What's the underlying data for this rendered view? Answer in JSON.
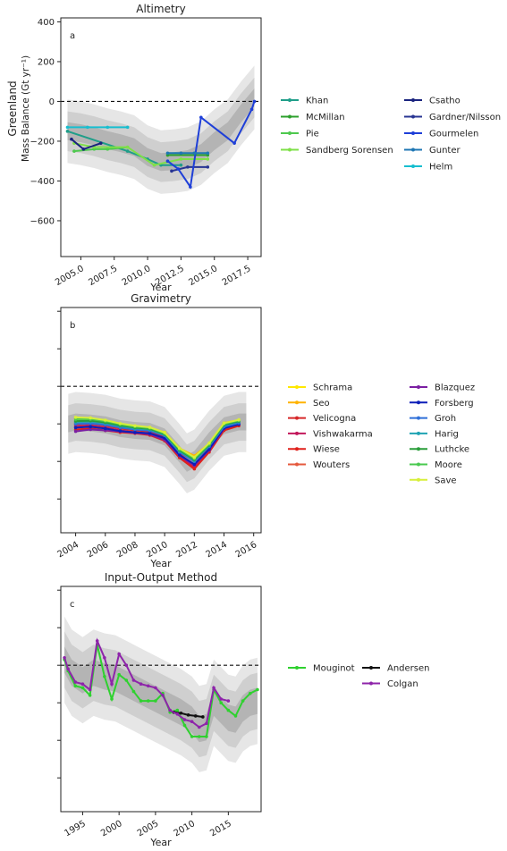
{
  "chart_data": [
    {
      "id": "a",
      "type": "line",
      "title": "Altimetry",
      "panel_label": "a",
      "xlabel": "Year",
      "ylabel_line1": "Greenland",
      "ylabel_line2": "Mass Balance (Gt yr⁻¹)",
      "xlim": [
        2003.5,
        2018.5
      ],
      "ylim": [
        -780,
        420
      ],
      "xticks": [
        2005.0,
        2007.5,
        2010.0,
        2012.5,
        2015.0,
        2017.5
      ],
      "xtick_labels": [
        "2005.0",
        "2007.5",
        "2010.0",
        "2012.5",
        "2015.0",
        "2017.5"
      ],
      "yticks": [
        400,
        200,
        0,
        -200,
        -400,
        -600
      ],
      "ytick_labels": [
        "400",
        "200",
        "0",
        "−200",
        "−400",
        "−600"
      ],
      "zero_line": true,
      "band_x": [
        2004.0,
        2005.0,
        2006.0,
        2007.0,
        2008.0,
        2009.0,
        2010.0,
        2011.0,
        2012.0,
        2013.0,
        2014.0,
        2015.0,
        2016.0,
        2017.0,
        2018.0
      ],
      "band_mean": [
        -150,
        -160,
        -175,
        -195,
        -210,
        -230,
        -280,
        -305,
        -300,
        -290,
        -260,
        -200,
        -150,
        -60,
        20
      ],
      "band_halfwidths": [
        160,
        100,
        45
      ],
      "series": [
        {
          "name": "Khan",
          "color": "#1f9e89",
          "x": [
            2004.0,
            2008.5,
            2010.0,
            2011.0,
            2012.5
          ],
          "y": [
            -150,
            -250,
            -290,
            -320,
            -320
          ]
        },
        {
          "name": "McMillan",
          "color": "#2ca02c",
          "x": [
            2011.5,
            2014.5
          ],
          "y": [
            -270,
            -270
          ]
        },
        {
          "name": "Pie",
          "color": "#4ec94e",
          "x": [
            2004.5,
            2006.0,
            2007.0,
            2008.5
          ],
          "y": [
            -250,
            -240,
            -240,
            -230
          ]
        },
        {
          "name": "Sandberg Sorensen",
          "color": "#7fe048",
          "x": [
            2004.5,
            2006.0,
            2008.5,
            2010.5,
            2012.5,
            2014.5
          ],
          "y": [
            -210,
            -230,
            -230,
            -320,
            -290,
            -290
          ]
        },
        {
          "name": "Csatho",
          "color": "#1a237e",
          "x": [
            2004.3,
            2005.2,
            2006.5
          ],
          "y": [
            -190,
            -240,
            -210
          ]
        },
        {
          "name": "Gardner/Nilsson",
          "color": "#283593",
          "x": [
            2011.8,
            2013.0,
            2014.5
          ],
          "y": [
            -350,
            -330,
            -330
          ]
        },
        {
          "name": "Gourmelen",
          "color": "#1e3fd8",
          "x": [
            2011.5,
            2012.3,
            2013.2,
            2014.0,
            2016.5,
            2017.8,
            2018.0
          ],
          "y": [
            -300,
            -340,
            -430,
            -80,
            -210,
            -40,
            0
          ]
        },
        {
          "name": "Gunter",
          "color": "#1f77b4",
          "x": [
            2011.5,
            2012.5,
            2013.5,
            2014.5
          ],
          "y": [
            -260,
            -260,
            -260,
            -260
          ]
        },
        {
          "name": "Helm",
          "color": "#17becf",
          "x": [
            2004.0,
            2005.5,
            2007.0,
            2008.5
          ],
          "y": [
            -130,
            -130,
            -130,
            -130
          ]
        }
      ]
    },
    {
      "id": "b",
      "type": "line",
      "title": "Gravimetry",
      "panel_label": "b",
      "xlabel": "Year",
      "xlim": [
        2003.0,
        2016.5
      ],
      "ylim": [
        -780,
        420
      ],
      "xticks": [
        2004,
        2006,
        2008,
        2010,
        2012,
        2014,
        2016
      ],
      "xtick_labels": [
        "2004",
        "2006",
        "2008",
        "2010",
        "2012",
        "2014",
        "2016"
      ],
      "yticks": [
        400,
        200,
        0,
        -200,
        -400,
        -600
      ],
      "ytick_labels": [
        "",
        "",
        "",
        "",
        "",
        ""
      ],
      "zero_line": true,
      "band_x": [
        2003.5,
        2004.0,
        2005.0,
        2006.0,
        2007.0,
        2008.0,
        2009.0,
        2010.0,
        2011.0,
        2011.5,
        2012.0,
        2012.5,
        2013.0,
        2014.0,
        2015.0,
        2015.5
      ],
      "band_mean": [
        -200,
        -190,
        -195,
        -205,
        -225,
        -235,
        -240,
        -270,
        -360,
        -410,
        -390,
        -340,
        -290,
        -210,
        -190,
        -190
      ],
      "band_halfwidths": [
        160,
        100,
        45
      ],
      "series": [
        {
          "name": "Schrama",
          "color": "#ffe800",
          "x": [
            2004,
            2005,
            2006,
            2007,
            2008,
            2009,
            2010,
            2011,
            2012,
            2013,
            2014,
            2015
          ],
          "y": [
            -180,
            -180,
            -200,
            -215,
            -225,
            -225,
            -255,
            -340,
            -380,
            -310,
            -205,
            -190
          ]
        },
        {
          "name": "Seo",
          "color": "#ffb300",
          "x": [
            2004,
            2005,
            2006,
            2007,
            2008,
            2009,
            2010,
            2011,
            2012,
            2013,
            2014,
            2015
          ],
          "y": [
            -170,
            -170,
            -185,
            -205,
            -215,
            -220,
            -245,
            -330,
            -370,
            -305,
            -195,
            -180
          ]
        },
        {
          "name": "Velicogna",
          "color": "#d62728",
          "x": [
            2004,
            2005,
            2006,
            2007,
            2008,
            2009,
            2010,
            2011,
            2012,
            2013,
            2014,
            2015
          ],
          "y": [
            -205,
            -200,
            -210,
            -225,
            -235,
            -240,
            -270,
            -360,
            -420,
            -330,
            -220,
            -200
          ]
        },
        {
          "name": "Vishwakarma",
          "color": "#c2185b",
          "x": [
            2004,
            2005,
            2006,
            2007,
            2008,
            2009,
            2010,
            2011,
            2012,
            2013,
            2014,
            2015
          ],
          "y": [
            -215,
            -210,
            -220,
            -235,
            -245,
            -250,
            -280,
            -370,
            -430,
            -345,
            -230,
            -205
          ]
        },
        {
          "name": "Wiese",
          "color": "#e0201b",
          "x": [
            2004,
            2005,
            2006,
            2007,
            2008,
            2009,
            2010,
            2011,
            2012,
            2013,
            2014,
            2015
          ],
          "y": [
            -230,
            -225,
            -235,
            -245,
            -250,
            -260,
            -290,
            -380,
            -440,
            -350,
            -235,
            -210
          ]
        },
        {
          "name": "Wouters",
          "color": "#e5593d",
          "x": [
            2004,
            2005,
            2006,
            2007,
            2008,
            2009,
            2010,
            2011,
            2012,
            2013,
            2014,
            2015
          ],
          "y": [
            -195,
            -190,
            -200,
            -215,
            -228,
            -232,
            -262,
            -350,
            -400,
            -320,
            -212,
            -195
          ]
        },
        {
          "name": "Blazquez",
          "color": "#7b1fa2",
          "x": [
            2004,
            2005,
            2006,
            2007,
            2008,
            2009,
            2010,
            2011,
            2012,
            2013,
            2014,
            2015
          ],
          "y": [
            -240,
            -230,
            -235,
            -240,
            -248,
            -255,
            -285,
            -370,
            -420,
            -340,
            -225,
            -200
          ]
        },
        {
          "name": "Forsberg",
          "color": "#0d1fb8",
          "x": [
            2004,
            2005,
            2006,
            2007,
            2008,
            2009,
            2010,
            2011,
            2012,
            2013,
            2014,
            2015
          ],
          "y": [
            -220,
            -215,
            -225,
            -238,
            -245,
            -250,
            -275,
            -365,
            -415,
            -335,
            -222,
            -202
          ]
        },
        {
          "name": "Groh",
          "color": "#2f6fd8",
          "x": [
            2004,
            2005,
            2006,
            2007,
            2008,
            2009,
            2010,
            2011,
            2012,
            2013,
            2014,
            2015
          ],
          "y": [
            -200,
            -198,
            -205,
            -220,
            -230,
            -236,
            -262,
            -350,
            -400,
            -320,
            -215,
            -195
          ]
        },
        {
          "name": "Harig",
          "color": "#1fa3b3",
          "x": [
            2004,
            2005,
            2006,
            2007,
            2008,
            2009,
            2010,
            2011,
            2012,
            2013,
            2014,
            2015
          ],
          "y": [
            -190,
            -188,
            -196,
            -212,
            -224,
            -230,
            -258,
            -345,
            -395,
            -315,
            -208,
            -188
          ]
        },
        {
          "name": "Luthcke",
          "color": "#2a9d3a",
          "x": [
            2004,
            2005,
            2006,
            2007,
            2008,
            2009,
            2010,
            2011,
            2012,
            2013,
            2014,
            2015
          ],
          "y": [
            -185,
            -183,
            -192,
            -208,
            -220,
            -226,
            -254,
            -340,
            -390,
            -312,
            -204,
            -185
          ]
        },
        {
          "name": "Moore",
          "color": "#49c94f",
          "x": [
            2004,
            2005,
            2006,
            2007,
            2008,
            2009,
            2010,
            2011,
            2012,
            2013,
            2014,
            2015
          ],
          "y": [
            -175,
            -175,
            -185,
            -202,
            -215,
            -222,
            -250,
            -335,
            -385,
            -308,
            -200,
            -182
          ]
        },
        {
          "name": "Save",
          "color": "#d7ef3a",
          "x": [
            2004,
            2005,
            2006,
            2007,
            2008,
            2009,
            2010,
            2011,
            2012,
            2013,
            2014,
            2015
          ],
          "y": [
            -165,
            -168,
            -180,
            -198,
            -210,
            -218,
            -246,
            -330,
            -378,
            -302,
            -196,
            -178
          ]
        }
      ]
    },
    {
      "id": "c",
      "type": "line",
      "title": "Input-Output Method",
      "panel_label": "c",
      "xlabel": "Year",
      "xlim": [
        1992.0,
        2019.5
      ],
      "ylim": [
        -780,
        420
      ],
      "xticks": [
        1995,
        2000,
        2005,
        2010,
        2015
      ],
      "xtick_labels": [
        "1995",
        "2000",
        "2005",
        "2010",
        "2015"
      ],
      "yticks": [
        400,
        200,
        0,
        -200,
        -400,
        -600
      ],
      "ytick_labels": [
        "",
        "",
        "",
        "",
        "",
        ""
      ],
      "zero_line": true,
      "band_x": [
        1992.5,
        1993.5,
        1995.0,
        1996.5,
        1998.0,
        1999.5,
        2001.0,
        2002.5,
        2004.0,
        2005.5,
        2007.0,
        2008.5,
        2010.0,
        2011.0,
        2012.0,
        2013.0,
        2014.0,
        2015.0,
        2016.0,
        2017.0,
        2018.0,
        2019.0
      ],
      "band_mean": [
        30,
        -40,
        -80,
        -40,
        -60,
        -70,
        -100,
        -130,
        -160,
        -190,
        -220,
        -250,
        -290,
        -340,
        -330,
        -200,
        -240,
        -280,
        -290,
        -230,
        -200,
        -190
      ],
      "band_halfwidths": [
        230,
        150,
        70
      ],
      "series": [
        {
          "name": "Mouginot",
          "color": "#2fd12f",
          "x": [
            1992.5,
            1993.0,
            1994.0,
            1995.0,
            1996.0,
            1997.0,
            1998.0,
            1999.0,
            2000.0,
            2001.0,
            2002.0,
            2003.0,
            2004.0,
            2005.0,
            2006.0,
            2007.0,
            2008.0,
            2009.0,
            2010.0,
            2011.0,
            2012.0,
            2013.0,
            2014.0,
            2015.0,
            2016.0,
            2017.0,
            2018.0,
            2019.0
          ],
          "y": [
            30,
            -30,
            -110,
            -120,
            -160,
            110,
            -60,
            -180,
            -50,
            -80,
            -140,
            -190,
            -190,
            -190,
            -150,
            -250,
            -240,
            -320,
            -380,
            -380,
            -380,
            -130,
            -200,
            -240,
            -270,
            -190,
            -150,
            -130
          ]
        },
        {
          "name": "Andersen",
          "color": "#111111",
          "x": [
            2007.5,
            2008.5,
            2009.5,
            2010.5,
            2011.5
          ],
          "y": [
            -250,
            -255,
            -265,
            -270,
            -275
          ]
        },
        {
          "name": "Colgan",
          "color": "#8e24aa",
          "x": [
            1992.5,
            1993.0,
            1994.0,
            1995.0,
            1996.0,
            1997.0,
            1998.0,
            1999.0,
            2000.0,
            2001.0,
            2002.0,
            2003.0,
            2004.0,
            2005.0,
            2006.0,
            2007.0,
            2008.0,
            2009.0,
            2010.0,
            2011.0,
            2012.0,
            2013.0,
            2014.0,
            2015.0
          ],
          "y": [
            40,
            -20,
            -90,
            -100,
            -130,
            130,
            40,
            -100,
            60,
            0,
            -80,
            -100,
            -110,
            -120,
            -160,
            -240,
            -260,
            -290,
            -300,
            -330,
            -310,
            -120,
            -180,
            -190
          ]
        }
      ]
    }
  ]
}
